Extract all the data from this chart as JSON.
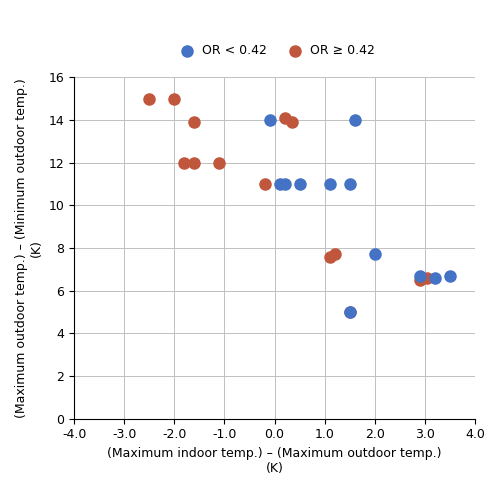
{
  "blue_x": [
    -0.1,
    0.1,
    0.2,
    0.5,
    1.1,
    1.5,
    1.6,
    2.0,
    2.9,
    3.2,
    3.5,
    1.5
  ],
  "blue_y": [
    14.0,
    11.0,
    11.0,
    11.0,
    11.0,
    11.0,
    14.0,
    7.7,
    6.7,
    6.6,
    6.7,
    5.0
  ],
  "orange_x": [
    -2.5,
    -2.0,
    -1.8,
    -1.6,
    -1.6,
    -1.1,
    -0.2,
    0.2,
    0.35,
    1.1,
    1.2,
    2.9,
    3.05,
    1.5
  ],
  "orange_y": [
    15.0,
    15.0,
    12.0,
    12.0,
    13.9,
    12.0,
    11.0,
    14.1,
    13.9,
    7.6,
    7.7,
    6.5,
    6.6,
    5.0
  ],
  "blue_color": "#4472C4",
  "orange_color": "#C0563C",
  "legend_label_blue": "OR < 0.42",
  "legend_label_orange": "OR ≥ 0.42",
  "xlabel_line1": "(Maximum indoor temp.) – (Maximum outdoor temp.)",
  "xlabel_line2": "(K)",
  "ylabel_line1": "(Maximum outdoor temp.) – (Minimum outdoor temp.)",
  "ylabel_line2": "(K)",
  "xlim": [
    -4.0,
    4.0
  ],
  "ylim": [
    0,
    16
  ],
  "xticks": [
    -4.0,
    -3.0,
    -2.0,
    -1.0,
    0.0,
    1.0,
    2.0,
    3.0,
    4.0
  ],
  "yticks": [
    0,
    2,
    4,
    6,
    8,
    10,
    12,
    14,
    16
  ],
  "marker_size": 8,
  "grid": true,
  "figsize": [
    5.0,
    4.9
  ],
  "dpi": 100
}
